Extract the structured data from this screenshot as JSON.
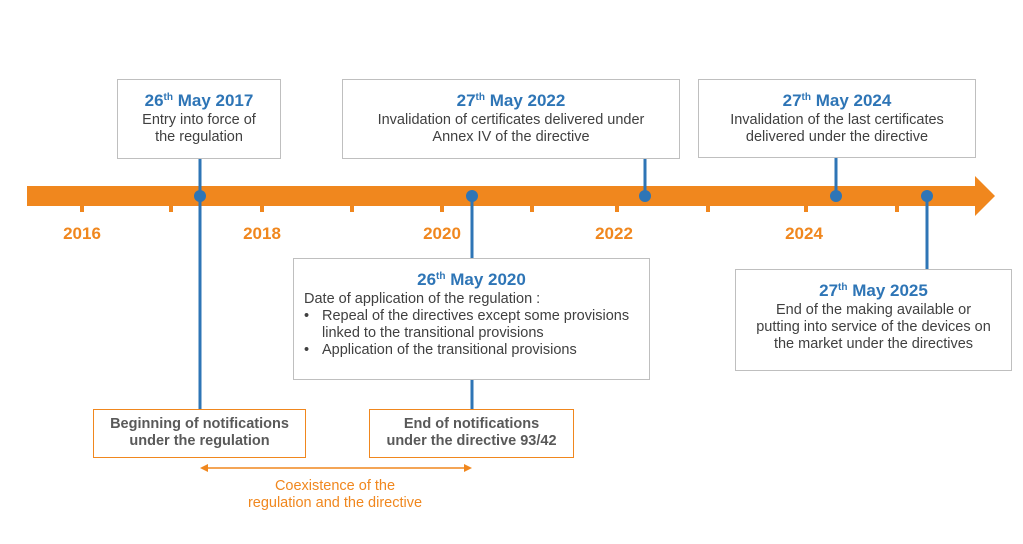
{
  "colors": {
    "accent": "#f0871e",
    "marker": "#2e75b6",
    "border": "#bfbfbf"
  },
  "years": [
    "2016",
    "2018",
    "2020",
    "2022",
    "2024"
  ],
  "events": [
    {
      "day": "26",
      "sup": "th",
      "month_year": "May 2017",
      "text": [
        "Entry into force of",
        "the regulation"
      ]
    },
    {
      "day": "27",
      "sup": "th",
      "month_year": "May 2022",
      "text": [
        "Invalidation of certificates delivered under",
        "Annex IV of the directive"
      ]
    },
    {
      "day": "27",
      "sup": "th",
      "month_year": "May 2024",
      "text": [
        "Invalidation of the last certificates",
        "delivered under the directive"
      ]
    },
    {
      "day": "26",
      "sup": "th",
      "month_year": "May 2020",
      "intro": "Date of application of the regulation :",
      "bullets": [
        "Repeal of the directives except some provisions linked to the transitional provisions",
        "Application of the transitional provisions"
      ]
    },
    {
      "day": "27",
      "sup": "th",
      "month_year": "May 2025",
      "text": [
        "End of the making available or",
        "putting into service of the devices on",
        "the market under the directives"
      ]
    }
  ],
  "notifications": [
    {
      "text": [
        "Beginning of notifications",
        "under the regulation"
      ]
    },
    {
      "text": [
        "End of notifications",
        "under the directive 93/42"
      ]
    }
  ],
  "coexistence": [
    "Coexistence of the",
    "regulation and the directive"
  ]
}
